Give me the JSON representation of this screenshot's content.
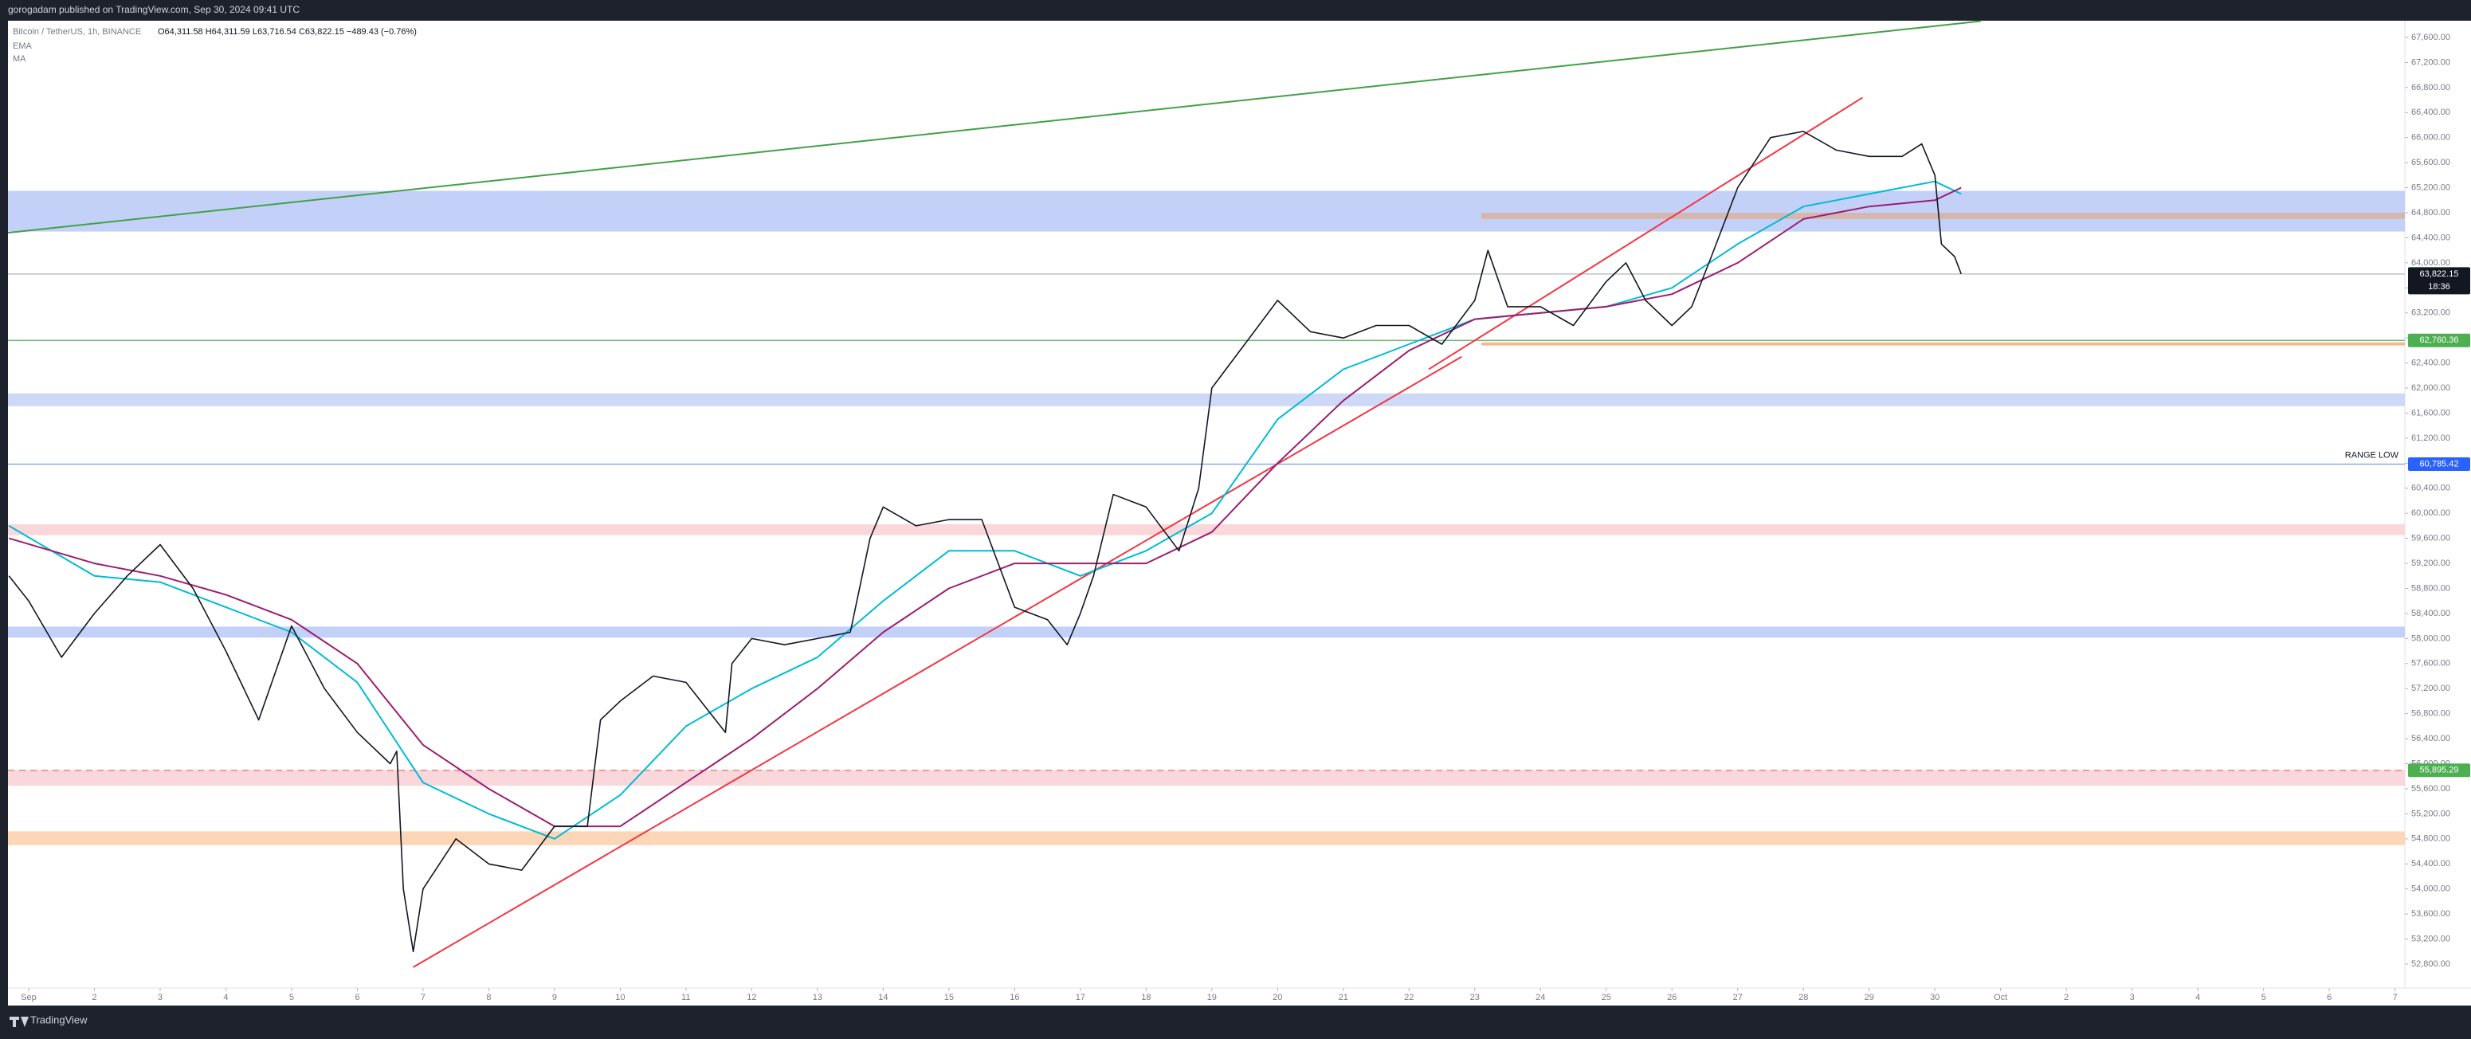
{
  "header": {
    "text": "gorogadam published on TradingView.com, Sep 30, 2024 09:41 UTC"
  },
  "legend": {
    "symbol": "Bitcoin / TetherUS, 1h, BINANCE",
    "ohlc": "O64,311.58 H64,311.59 L63,716.54 C63,822.15 −489.43 (−0.76%)"
  },
  "footer": {
    "brand": "TradingView"
  },
  "chart_data": {
    "type": "candlestick",
    "xlim": [
      0.685,
      37.15
    ],
    "ylim": [
      52418,
      67867
    ],
    "xticks": [
      {
        "value": 1,
        "label": "Sep"
      },
      2,
      3,
      4,
      5,
      6,
      7,
      8,
      9,
      10,
      11,
      12,
      13,
      14,
      15,
      16,
      17,
      18,
      19,
      20,
      21,
      22,
      23,
      24,
      25,
      26,
      27,
      28,
      29,
      30,
      {
        "value": 31,
        "label": "Oct"
      },
      {
        "value": 32,
        "label": "2"
      },
      {
        "value": 33,
        "label": "3"
      },
      {
        "value": 34,
        "label": "4"
      },
      {
        "value": 35,
        "label": "5"
      },
      {
        "value": 36,
        "label": "6"
      },
      {
        "value": 37,
        "label": "7"
      }
    ],
    "yticks": [
      {
        "value": 52800,
        "label": "52,800.00"
      },
      {
        "value": 53200,
        "label": "53,200.00"
      },
      {
        "value": 53600,
        "label": "53,600.00"
      },
      {
        "value": 54000,
        "label": "54,000.00"
      },
      {
        "value": 54400,
        "label": "54,400.00"
      },
      {
        "value": 54800,
        "label": "54,800.00"
      },
      {
        "value": 55200,
        "label": "55,200.00"
      },
      {
        "value": 55600,
        "label": "55,600.00"
      },
      {
        "value": 56000,
        "label": "56,000.00"
      },
      {
        "value": 56400,
        "label": "56,400.00"
      },
      {
        "value": 56800,
        "label": "56,800.00"
      },
      {
        "value": 57200,
        "label": "57,200.00"
      },
      {
        "value": 57600,
        "label": "57,600.00"
      },
      {
        "value": 58000,
        "label": "58,000.00"
      },
      {
        "value": 58400,
        "label": "58,400.00"
      },
      {
        "value": 58800,
        "label": "58,800.00"
      },
      {
        "value": 59200,
        "label": "59,200.00"
      },
      {
        "value": 59600,
        "label": "59,600.00"
      },
      {
        "value": 60000,
        "label": "60,000.00"
      },
      {
        "value": 60400,
        "label": "60,400.00"
      },
      {
        "value": 60800,
        "label": "60,800.00"
      },
      {
        "value": 61200,
        "label": "61,200.00"
      },
      {
        "value": 61600,
        "label": "61,600.00"
      },
      {
        "value": 62000,
        "label": "62,000.00"
      },
      {
        "value": 62400,
        "label": "62,400.00"
      },
      {
        "value": 62800,
        "label": "62,800.00"
      },
      {
        "value": 63200,
        "label": "63,200.00"
      },
      {
        "value": 63600,
        "label": "63,600.00"
      },
      {
        "value": 64000,
        "label": "64,000.00"
      },
      {
        "value": 64400,
        "label": "64,400.00"
      },
      {
        "value": 64800,
        "label": "64,800.00"
      },
      {
        "value": 65200,
        "label": "65,200.00"
      },
      {
        "value": 65600,
        "label": "65,600.00"
      },
      {
        "value": 66000,
        "label": "66,000.00"
      },
      {
        "value": 66400,
        "label": "66,400.00"
      },
      {
        "value": 66800,
        "label": "66,800.00"
      },
      {
        "value": 67200,
        "label": "67,200.00"
      },
      {
        "value": 67600,
        "label": "67,600.00"
      }
    ],
    "price": {
      "color": "#131722",
      "x": [
        0.7,
        1.0,
        1.5,
        2.0,
        2.5,
        3.0,
        3.5,
        4.0,
        4.5,
        5.0,
        5.5,
        6.0,
        6.5,
        6.6,
        6.7,
        6.85,
        7.0,
        7.5,
        8.0,
        8.5,
        9.0,
        9.5,
        9.7,
        10.0,
        10.5,
        11.0,
        11.6,
        11.7,
        12.0,
        12.5,
        13.0,
        13.5,
        13.8,
        14.0,
        14.5,
        15.0,
        15.5,
        16.0,
        16.5,
        16.8,
        17.0,
        17.2,
        17.5,
        18.0,
        18.5,
        18.8,
        19.0,
        19.5,
        20.0,
        20.5,
        21.0,
        21.5,
        22.0,
        22.5,
        23.0,
        23.2,
        23.5,
        24.0,
        24.5,
        25.0,
        25.3,
        25.6,
        26.0,
        26.3,
        26.6,
        27.0,
        27.5,
        28.0,
        28.5,
        29.0,
        29.5,
        29.8,
        30.0,
        30.1,
        30.3,
        30.4
      ],
      "values": [
        59000,
        58600,
        57700,
        58400,
        59000,
        59500,
        58800,
        57800,
        56700,
        58200,
        57200,
        56500,
        56000,
        56200,
        54000,
        53000,
        54000,
        54800,
        54400,
        54300,
        55000,
        55000,
        56700,
        57000,
        57400,
        57300,
        56500,
        57600,
        58000,
        57900,
        58000,
        58100,
        59600,
        60100,
        59800,
        59900,
        59900,
        58500,
        58300,
        57900,
        58400,
        59000,
        60300,
        60100,
        59400,
        60400,
        62000,
        62700,
        63400,
        62900,
        62800,
        63000,
        63000,
        62700,
        63400,
        64200,
        63300,
        63300,
        63000,
        63700,
        64000,
        63400,
        63000,
        63300,
        64100,
        65200,
        66000,
        66100,
        65800,
        65700,
        65700,
        65900,
        65400,
        64300,
        64100,
        63822.15
      ]
    },
    "ema": {
      "name": "EMA",
      "color": "#00bcd4",
      "x": [
        0.7,
        2,
        3,
        4,
        5,
        6,
        7,
        8,
        9,
        10,
        11,
        12,
        13,
        14,
        15,
        16,
        17,
        18,
        19,
        20,
        21,
        22,
        23,
        24,
        25,
        26,
        27,
        28,
        29,
        30,
        30.4
      ],
      "values": [
        59800,
        59000,
        58900,
        58500,
        58100,
        57300,
        55700,
        55200,
        54800,
        55500,
        56600,
        57200,
        57700,
        58600,
        59400,
        59400,
        59000,
        59400,
        60000,
        61500,
        62300,
        62700,
        63100,
        63200,
        63300,
        63600,
        64300,
        64900,
        65100,
        65300,
        65100
      ]
    },
    "ma": {
      "name": "MA",
      "color": "#9c1e6e",
      "x": [
        0.7,
        2,
        3,
        4,
        5,
        6,
        7,
        8,
        9,
        10,
        11,
        12,
        13,
        14,
        15,
        16,
        17,
        18,
        19,
        20,
        21,
        22,
        23,
        24,
        25,
        26,
        27,
        28,
        29,
        30,
        30.4
      ],
      "values": [
        59600,
        59200,
        59000,
        58700,
        58300,
        57600,
        56300,
        55600,
        55000,
        55000,
        55700,
        56400,
        57200,
        58100,
        58800,
        59200,
        59200,
        59200,
        59700,
        60800,
        61800,
        62600,
        63100,
        63200,
        63300,
        63500,
        64000,
        64700,
        64900,
        65000,
        65200
      ]
    },
    "zones": [
      {
        "from": 64500,
        "to": 65150,
        "color": "#bcccf7",
        "start": 0.685
      },
      {
        "from": 64700,
        "to": 64800,
        "color": "#d9b3a3",
        "start": 23.1
      },
      {
        "from": 61710,
        "to": 61915,
        "color": "#c9d5f7",
        "start": 0.685
      },
      {
        "from": 59650,
        "to": 59825,
        "color": "#f8d3d6",
        "start": 0.685
      },
      {
        "from": 58015,
        "to": 58190,
        "color": "#bcccf7",
        "start": 0.685
      },
      {
        "from": 55650,
        "to": 55900,
        "color": "#f8d3d6",
        "start": 0.685
      },
      {
        "from": 54700,
        "to": 54920,
        "color": "#fbd3b0",
        "start": 0.685
      },
      {
        "from": 62680,
        "to": 62730,
        "color": "#f4b183",
        "start": 23.1
      }
    ],
    "levels": [
      {
        "value": 63822.15,
        "label": "63,822.15",
        "time": "18:36",
        "color": "#b2b5be",
        "tag": "#131722"
      },
      {
        "value": 62760.36,
        "label": "62,760.36",
        "color": "#4caf50",
        "tag": "#4caf50"
      },
      {
        "value": 60785.42,
        "label": "60,785.42",
        "note": "RANGE LOW",
        "color": "#2962ff",
        "tag": "#2962ff",
        "line": "#7a9af0"
      },
      {
        "value": 55895.29,
        "label": "55,895.29",
        "color": "#e57373",
        "tag": "#4caf50",
        "dashed": true
      }
    ],
    "trendlines": [
      {
        "x": [
          0.685,
          30.7
        ],
        "values": [
          64480,
          67860
        ],
        "color": "#43a047"
      },
      {
        "x": [
          6.85,
          22.8
        ],
        "values": [
          52750,
          62500
        ],
        "color": "#f23645"
      },
      {
        "x": [
          22.3,
          28.9
        ],
        "values": [
          62300,
          66640
        ],
        "color": "#f23645"
      }
    ]
  }
}
